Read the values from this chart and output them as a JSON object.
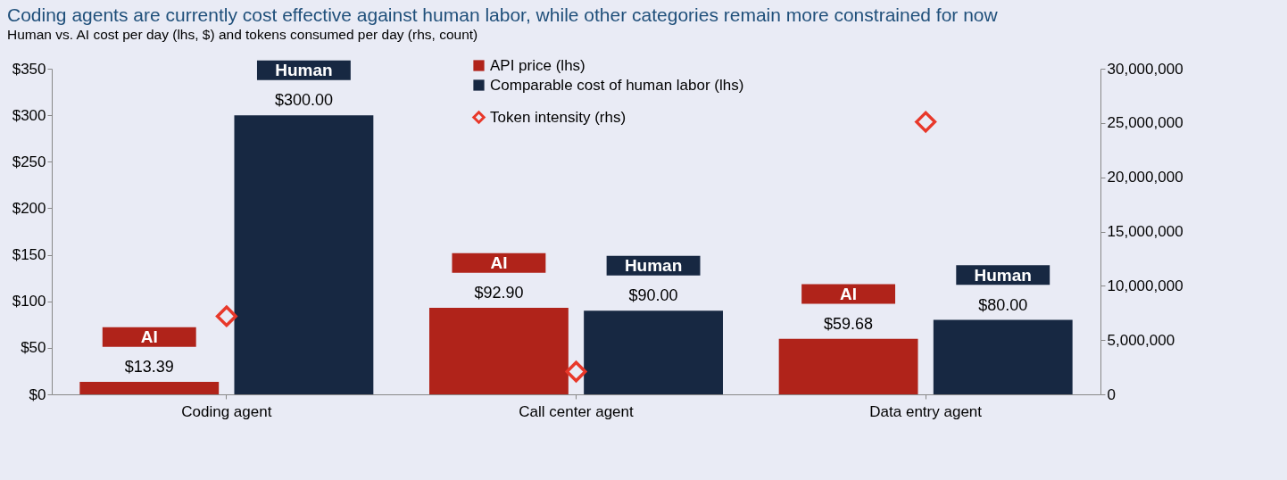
{
  "chart_data": {
    "type": "bar",
    "title": "Coding agents are currently cost effective against human labor, while other categories remain more constrained for now",
    "subtitle": "Human vs. AI cost per day (lhs, $) and tokens consumed per day (rhs, count)",
    "categories": [
      "Coding agent",
      "Call center agent",
      "Data entry agent"
    ],
    "series": [
      {
        "name": "API price (lhs)",
        "color": "#b0231a",
        "values": [
          13.39,
          92.9,
          59.68
        ],
        "value_labels": [
          "$13.39",
          "$92.90",
          "$59.68"
        ]
      },
      {
        "name": "Comparable cost of human labor (lhs)",
        "color": "#172842",
        "values": [
          300,
          90,
          80
        ],
        "value_labels": [
          "$300.00",
          "$90.00",
          "$80.00"
        ]
      },
      {
        "name": "Token intensity (rhs)",
        "type": "scatter",
        "axis": "y2",
        "marker": "diamond",
        "color": "#e8382a",
        "x": [
          "Coding agent",
          "Call center agent",
          "Data entry agent"
        ],
        "values": [
          7200000,
          2100000,
          25100000
        ]
      }
    ],
    "annotations": [
      "AI",
      "Human",
      "AI",
      "Human",
      "AI",
      "Human"
    ],
    "ylim": [
      0,
      350
    ],
    "yticks": [
      {
        "value": 0,
        "label": "$0"
      },
      {
        "value": 50,
        "label": "$50"
      },
      {
        "value": 100,
        "label": "$100"
      },
      {
        "value": 150,
        "label": "$150"
      },
      {
        "value": 200,
        "label": "$200"
      },
      {
        "value": 250,
        "label": "$250"
      },
      {
        "value": 300,
        "label": "$300"
      },
      {
        "value": 350,
        "label": "$350"
      }
    ],
    "y2lim": [
      0,
      30000000
    ],
    "y2ticks": [
      0,
      {
        "value": 5000000,
        "label": "5,000,000"
      },
      {
        "value": 10000000,
        "label": "10,000,000"
      },
      {
        "value": 15000000,
        "label": "15,000,000"
      },
      {
        "value": 20000000,
        "label": "20,000,000"
      },
      {
        "value": 25000000,
        "label": "25,000,000"
      },
      {
        "value": 30000000,
        "label": "30,000,000"
      }
    ],
    "legend": "top",
    "grid": false
  }
}
